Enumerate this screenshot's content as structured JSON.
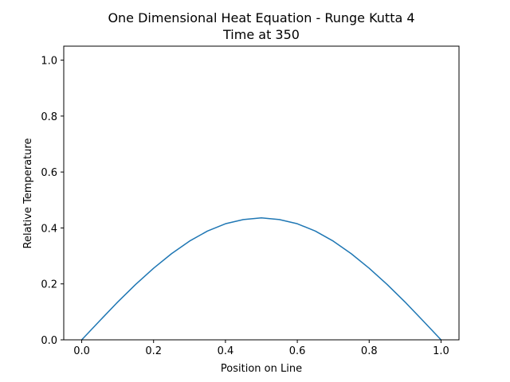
{
  "chart_data": {
    "type": "line",
    "title": "One Dimensional Heat Equation - Runge Kutta 4",
    "subtitle": "Time at 350",
    "xlabel": "Position on Line",
    "ylabel": "Relative Temperature",
    "xlim": [
      -0.05,
      1.05
    ],
    "ylim": [
      0.0,
      1.05
    ],
    "xticks": [
      0.0,
      0.2,
      0.4,
      0.6,
      0.8,
      1.0
    ],
    "xtick_labels": [
      "0.0",
      "0.2",
      "0.4",
      "0.6",
      "0.8",
      "1.0"
    ],
    "yticks": [
      0.0,
      0.2,
      0.4,
      0.6,
      0.8,
      1.0
    ],
    "ytick_labels": [
      "0.0",
      "0.2",
      "0.4",
      "0.6",
      "0.8",
      "1.0"
    ],
    "grid": false,
    "line_color": "#1f77b4",
    "series": [
      {
        "x": [
          0.0,
          0.05,
          0.1,
          0.15,
          0.2,
          0.25,
          0.3,
          0.35,
          0.4,
          0.45,
          0.5,
          0.55,
          0.6,
          0.65,
          0.7,
          0.75,
          0.8,
          0.85,
          0.9,
          0.95,
          1.0
        ],
        "values": [
          0.0,
          0.068,
          0.135,
          0.198,
          0.256,
          0.308,
          0.353,
          0.389,
          0.415,
          0.43,
          0.436,
          0.43,
          0.415,
          0.389,
          0.353,
          0.308,
          0.256,
          0.198,
          0.135,
          0.068,
          0.0
        ]
      }
    ]
  }
}
